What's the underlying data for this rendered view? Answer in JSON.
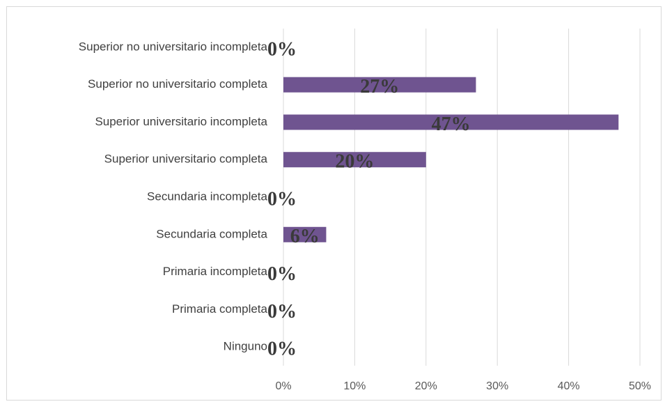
{
  "chart_data": {
    "type": "bar",
    "orientation": "horizontal",
    "categories": [
      "Superior no universitario incompleta",
      "Superior no universitario completa",
      "Superior universitario incompleta",
      "Superior universitario completa",
      "Secundaria incompleta",
      "Secundaria completa",
      "Primaria incompleta",
      "Primaria completa",
      "Ninguno"
    ],
    "values": [
      0,
      27,
      47,
      20,
      0,
      6,
      0,
      0,
      0
    ],
    "value_labels": [
      "0%",
      "27%",
      "47%",
      "20%",
      "0%",
      "6%",
      "0%",
      "0%",
      "0%"
    ],
    "color": "#6f5490",
    "xlim": [
      0,
      50
    ],
    "xticks": [
      {
        "value": 0,
        "label": "0%"
      },
      {
        "value": 10,
        "label": "10%"
      },
      {
        "value": 20,
        "label": "20%"
      },
      {
        "value": 30,
        "label": "30%"
      },
      {
        "value": 40,
        "label": "40%"
      },
      {
        "value": 50,
        "label": "50%"
      }
    ],
    "grid": true
  }
}
